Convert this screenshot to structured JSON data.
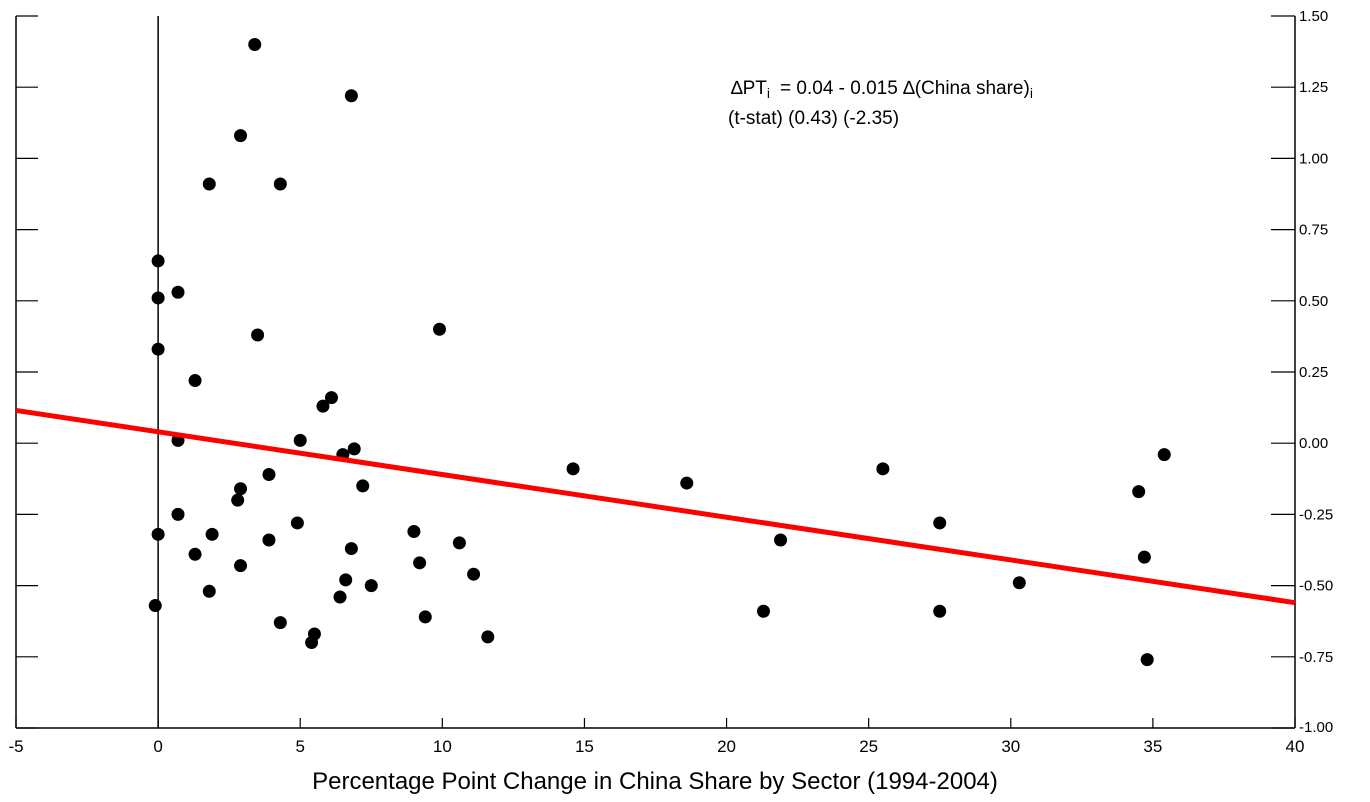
{
  "chart_data": {
    "type": "scatter",
    "title": "",
    "xlabel": "Percentage Point Change in China Share by Sector (1994-2004)",
    "ylabel": "",
    "xlim": [
      -5,
      40
    ],
    "ylim": [
      -1.0,
      1.5
    ],
    "x_ticks": [
      -5,
      0,
      5,
      10,
      15,
      20,
      25,
      30,
      35,
      40
    ],
    "x_tick_labels": [
      "-5",
      "0",
      "5",
      "10",
      "15",
      "20",
      "25",
      "30",
      "35",
      "40"
    ],
    "y_ticks": [
      1.5,
      1.25,
      1.0,
      0.75,
      0.5,
      0.25,
      0.0,
      -0.25,
      -0.5,
      -0.75,
      -1.0
    ],
    "y_tick_labels": [
      "1.50",
      "1.25",
      "1.00",
      "0.75",
      "0.50",
      "0.25",
      "0.00",
      "-0.25",
      "-0.50",
      "-0.75",
      "-1.00"
    ],
    "y_axis_side": "right",
    "grid": false,
    "legend": "none",
    "vertical_reference_line_x": 0,
    "colors": {
      "points": "#000000",
      "fit_line": "#ff0000",
      "axes": "#000000"
    },
    "points": [
      {
        "x": 3.4,
        "y": 1.4
      },
      {
        "x": 6.8,
        "y": 1.22
      },
      {
        "x": 2.9,
        "y": 1.08
      },
      {
        "x": 1.8,
        "y": 0.91
      },
      {
        "x": 4.3,
        "y": 0.91
      },
      {
        "x": 0.0,
        "y": 0.64
      },
      {
        "x": 0.7,
        "y": 0.53
      },
      {
        "x": 0.0,
        "y": 0.51
      },
      {
        "x": 3.5,
        "y": 0.38
      },
      {
        "x": 9.9,
        "y": 0.4
      },
      {
        "x": 0.0,
        "y": 0.33
      },
      {
        "x": 1.3,
        "y": 0.22
      },
      {
        "x": 6.1,
        "y": 0.16
      },
      {
        "x": 5.8,
        "y": 0.13
      },
      {
        "x": 0.7,
        "y": 0.01
      },
      {
        "x": 5.0,
        "y": 0.01
      },
      {
        "x": 6.9,
        "y": -0.02
      },
      {
        "x": 6.5,
        "y": -0.04
      },
      {
        "x": 3.9,
        "y": -0.11
      },
      {
        "x": 7.2,
        "y": -0.15
      },
      {
        "x": 2.9,
        "y": -0.16
      },
      {
        "x": 2.8,
        "y": -0.2
      },
      {
        "x": 0.7,
        "y": -0.25
      },
      {
        "x": 4.9,
        "y": -0.28
      },
      {
        "x": 0.0,
        "y": -0.32
      },
      {
        "x": 1.9,
        "y": -0.32
      },
      {
        "x": 9.0,
        "y": -0.31
      },
      {
        "x": 3.9,
        "y": -0.34
      },
      {
        "x": 6.8,
        "y": -0.37
      },
      {
        "x": 10.6,
        "y": -0.35
      },
      {
        "x": 1.3,
        "y": -0.39
      },
      {
        "x": 9.2,
        "y": -0.42
      },
      {
        "x": 2.9,
        "y": -0.43
      },
      {
        "x": 11.1,
        "y": -0.46
      },
      {
        "x": 6.6,
        "y": -0.48
      },
      {
        "x": 7.5,
        "y": -0.5
      },
      {
        "x": 1.8,
        "y": -0.52
      },
      {
        "x": 6.4,
        "y": -0.54
      },
      {
        "x": -0.1,
        "y": -0.57
      },
      {
        "x": 9.4,
        "y": -0.61
      },
      {
        "x": 4.3,
        "y": -0.63
      },
      {
        "x": 5.5,
        "y": -0.67
      },
      {
        "x": 11.6,
        "y": -0.68
      },
      {
        "x": 5.4,
        "y": -0.7
      },
      {
        "x": 14.6,
        "y": -0.09
      },
      {
        "x": 18.6,
        "y": -0.14
      },
      {
        "x": 21.9,
        "y": -0.34
      },
      {
        "x": 21.3,
        "y": -0.59
      },
      {
        "x": 25.5,
        "y": -0.09
      },
      {
        "x": 27.5,
        "y": -0.28
      },
      {
        "x": 27.5,
        "y": -0.59
      },
      {
        "x": 30.3,
        "y": -0.49
      },
      {
        "x": 34.5,
        "y": -0.17
      },
      {
        "x": 35.4,
        "y": -0.04
      },
      {
        "x": 34.7,
        "y": -0.4
      },
      {
        "x": 34.8,
        "y": -0.76
      }
    ],
    "fit_line": {
      "intercept": 0.04,
      "slope": -0.015
    },
    "annotation": {
      "line1_prefix": "∆PT",
      "line1_sub": "i",
      "line1_equation": "=  0.04  -  0.015 ∆(China share)",
      "line1_sub2": "i",
      "line2": "(t-stat)   (0.43)   (-2.35)"
    }
  }
}
